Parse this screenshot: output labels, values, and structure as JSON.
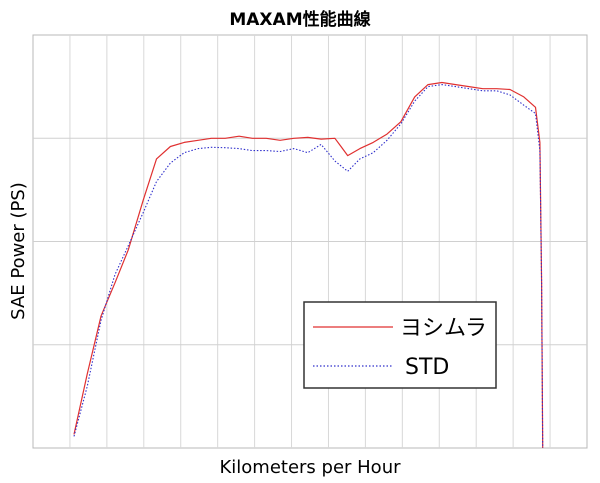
{
  "chart_data": {
    "type": "line",
    "title": "MAXAM性能曲線",
    "xlabel": "Kilometers per Hour",
    "ylabel": "SAE Power (PS)",
    "xlim": [
      0,
      100
    ],
    "ylim": [
      0,
      100
    ],
    "grid": true,
    "legend_position": "bottom-right",
    "series": [
      {
        "name": "ヨシムラ",
        "color": "#e03030",
        "style": "solid",
        "points": [
          [
            7.4,
            3.3
          ],
          [
            9.8,
            18
          ],
          [
            12.3,
            32
          ],
          [
            14.8,
            40
          ],
          [
            17.2,
            48
          ],
          [
            19.9,
            60
          ],
          [
            22.3,
            70
          ],
          [
            24.8,
            73
          ],
          [
            27.3,
            74
          ],
          [
            29.8,
            74.5
          ],
          [
            32.2,
            75
          ],
          [
            34.7,
            75
          ],
          [
            37.2,
            75.5
          ],
          [
            39.6,
            75
          ],
          [
            42.1,
            75
          ],
          [
            44.6,
            74.5
          ],
          [
            47.1,
            75
          ],
          [
            49.6,
            75.2
          ],
          [
            52.0,
            74.8
          ],
          [
            54.5,
            75
          ],
          [
            55.6,
            73
          ],
          [
            56.8,
            70.8
          ],
          [
            59.0,
            72.5
          ],
          [
            61.4,
            74
          ],
          [
            63.9,
            76
          ],
          [
            66.4,
            79
          ],
          [
            68.9,
            85
          ],
          [
            71.3,
            88
          ],
          [
            73.8,
            88.5
          ],
          [
            76.3,
            88
          ],
          [
            78.7,
            87.5
          ],
          [
            81.2,
            87
          ],
          [
            83.7,
            87
          ],
          [
            86.1,
            86.8
          ],
          [
            88.6,
            85
          ],
          [
            90.7,
            82.5
          ],
          [
            91.5,
            74
          ],
          [
            91.8,
            40
          ],
          [
            92.0,
            0
          ]
        ]
      },
      {
        "name": "STD",
        "color": "#3030cc",
        "style": "dotted",
        "points": [
          [
            7.4,
            2.8
          ],
          [
            9.8,
            15
          ],
          [
            12.3,
            31
          ],
          [
            14.8,
            42
          ],
          [
            17.2,
            49
          ],
          [
            19.9,
            57
          ],
          [
            22.3,
            64.5
          ],
          [
            24.8,
            69
          ],
          [
            27.3,
            71.5
          ],
          [
            29.8,
            72.5
          ],
          [
            32.2,
            72.8
          ],
          [
            34.7,
            72.7
          ],
          [
            37.2,
            72.5
          ],
          [
            39.6,
            72
          ],
          [
            42.1,
            72
          ],
          [
            44.6,
            71.8
          ],
          [
            47.1,
            72.5
          ],
          [
            49.6,
            71.5
          ],
          [
            52.0,
            73.5
          ],
          [
            54.5,
            69.5
          ],
          [
            56.8,
            67
          ],
          [
            59.0,
            70
          ],
          [
            61.4,
            71.5
          ],
          [
            63.9,
            74.5
          ],
          [
            66.4,
            78.5
          ],
          [
            68.9,
            84
          ],
          [
            71.3,
            87.5
          ],
          [
            73.8,
            88
          ],
          [
            76.3,
            87.5
          ],
          [
            78.7,
            87
          ],
          [
            81.2,
            86.5
          ],
          [
            83.7,
            86.5
          ],
          [
            86.1,
            85.5
          ],
          [
            88.6,
            83
          ],
          [
            90.7,
            81
          ],
          [
            91.5,
            72
          ],
          [
            91.8,
            40
          ],
          [
            92.0,
            0
          ]
        ]
      }
    ]
  }
}
